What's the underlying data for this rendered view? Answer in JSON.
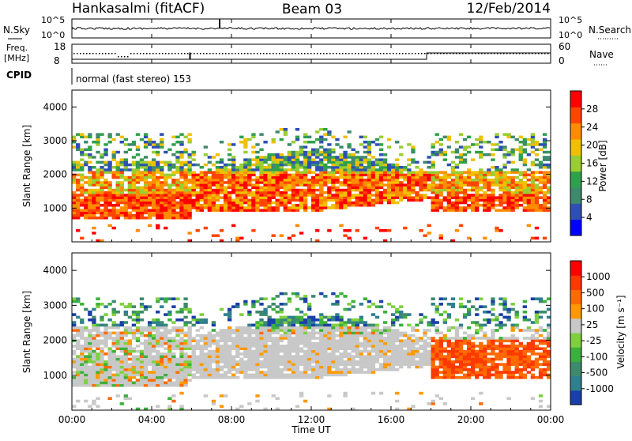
{
  "header": {
    "station": "Hankasalmi (fitACF)",
    "beam": "Beam 03",
    "date": "12/Feb/2014"
  },
  "noise_panel": {
    "left_label": "N.Sky",
    "right_label": "N.Search",
    "left_ticks": [
      "10^5",
      "10^0"
    ],
    "right_ticks": [
      "10^5",
      "10^0"
    ]
  },
  "freq_panel": {
    "left_label_line1": "Freq.",
    "left_label_line2": "[MHz]",
    "right_label": "Nave",
    "left_ticks": [
      "18",
      "8"
    ],
    "right_ticks": [
      "60",
      "0"
    ]
  },
  "cpid": {
    "label": "CPID",
    "text": "normal (fast stereo) 153"
  },
  "chart_data": [
    {
      "type": "heatmap",
      "name": "power",
      "ylabel": "Slant Range [km]",
      "yticks": [
        "4000",
        "3000",
        "2000",
        "1000"
      ],
      "ylim": [
        0,
        4500
      ],
      "colorbar_label": "Power [dB]",
      "colorbar_ticks": [
        "28",
        "24",
        "20",
        "16",
        "12",
        "8",
        "4"
      ],
      "colors": [
        "#0000ff",
        "#2f4fb4",
        "#3e8a6e",
        "#2fa04b",
        "#9acd32",
        "#f0c000",
        "#ff8c00",
        "#ff4500",
        "#ff0000"
      ]
    },
    {
      "type": "heatmap",
      "name": "velocity",
      "ylabel": "Slant Range [km]",
      "yticks": [
        "4000",
        "3000",
        "2000",
        "1000"
      ],
      "ylim": [
        0,
        4500
      ],
      "colorbar_label": "Velocity [m s⁻¹]",
      "colorbar_ticks": [
        "1000",
        "500",
        "100",
        "25",
        "-25",
        "-100",
        "-500",
        "-1000"
      ],
      "colors": [
        "#1a3fa8",
        "#2f7f8f",
        "#3e8a6e",
        "#3cb03c",
        "#7fd040",
        "#c8c8c8",
        "#ff9900",
        "#ff6a00",
        "#ff3800",
        "#ff0000"
      ]
    }
  ],
  "x_axis": {
    "ticks": [
      "00:00",
      "04:00",
      "08:00",
      "12:00",
      "16:00",
      "20:00",
      "00:00"
    ],
    "label": "Time UT"
  }
}
